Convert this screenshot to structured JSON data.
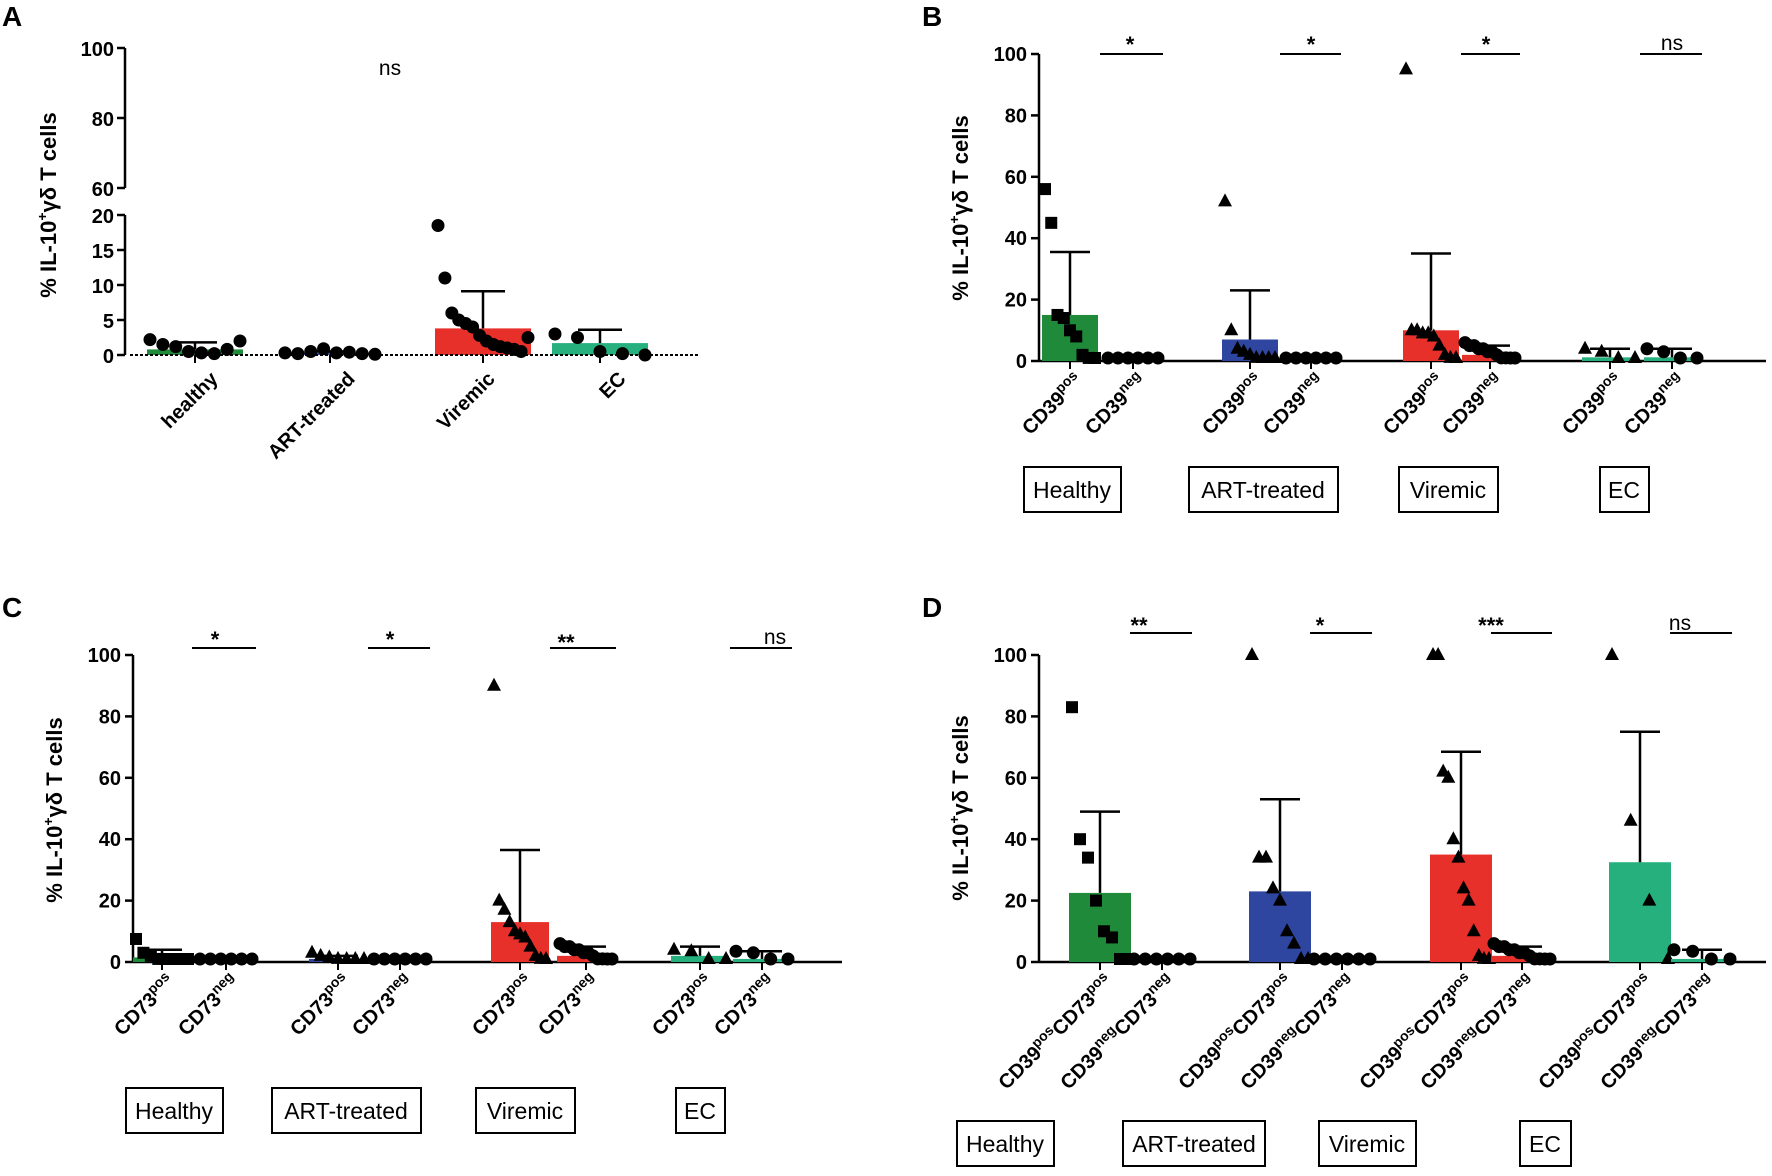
{
  "colors": {
    "Healthy": "#1f8b3a",
    "ART-treated": "#2e46a0",
    "Viremic": "#e8302a",
    "EC": "#25b07e"
  },
  "chart_data": [
    {
      "panel": "A",
      "type": "bar",
      "ylabel": "% IL-10⁺γδ T cells",
      "ylim": [
        0,
        100
      ],
      "y_axis_break": [
        20,
        60
      ],
      "yticks": [
        0,
        5,
        10,
        15,
        20,
        60,
        80,
        100
      ],
      "categories": [
        "healthy",
        "ART-treated",
        "Viremic",
        "EC"
      ],
      "values": [
        0.8,
        0.3,
        3.8,
        1.7
      ],
      "error_upper": [
        1.8,
        0.5,
        9.1,
        3.6
      ],
      "points": [
        [
          2.2,
          1.5,
          1.2,
          0.5,
          0.3,
          0.2,
          0.8,
          2.0
        ],
        [
          0.3,
          0.2,
          0.5,
          0.9,
          0.3,
          0.4,
          0.2,
          0.1
        ],
        [
          18.5,
          11.0,
          6.0,
          5.0,
          4.5,
          4.0,
          2.8,
          2.0,
          1.5,
          1.2,
          1.0,
          0.8,
          0.5,
          2.5
        ],
        [
          3.0,
          2.5,
          0.5,
          0.2,
          0.0
        ]
      ],
      "significance": [
        "ns"
      ]
    },
    {
      "panel": "B",
      "type": "bar",
      "ylabel": "% IL-10⁺γδ T cells",
      "ylim": [
        0,
        100
      ],
      "yticks": [
        0,
        20,
        40,
        60,
        80,
        100
      ],
      "groups": [
        "Healthy",
        "ART-treated",
        "Viremic",
        "EC"
      ],
      "categories": [
        "CD39pos",
        "CD39neg"
      ],
      "series": [
        {
          "values": [
            15,
            0.3
          ],
          "error_upper": [
            35.5,
            0.5
          ],
          "points": [
            [
              56,
              45,
              15,
              14,
              10,
              8,
              2,
              1,
              0.5
            ],
            [
              0.2,
              0.1,
              0.3,
              0.1,
              0.2,
              0.1
            ]
          ]
        },
        {
          "values": [
            7,
            0.3
          ],
          "error_upper": [
            23,
            0.5
          ],
          "points": [
            [
              52,
              10,
              4,
              3,
              2,
              1,
              0.5,
              0.3,
              0.1
            ],
            [
              0.2,
              0.1,
              0.3,
              0.1,
              0.2,
              0.1
            ]
          ]
        },
        {
          "values": [
            10,
            2
          ],
          "error_upper": [
            35,
            5
          ],
          "points": [
            [
              95,
              10,
              10,
              9,
              9,
              8,
              5,
              2,
              1,
              0.5
            ],
            [
              6,
              5,
              5,
              4,
              4,
              3,
              3,
              2,
              1,
              1,
              0.5,
              0.3
            ]
          ]
        },
        {
          "values": [
            1.2,
            1.2
          ],
          "error_upper": [
            4,
            4
          ],
          "points": [
            [
              4,
              3,
              0.5,
              0.2
            ],
            [
              4,
              3,
              0.5,
              0.3
            ]
          ]
        }
      ],
      "significance": [
        "*",
        "*",
        "*",
        "ns"
      ]
    },
    {
      "panel": "C",
      "type": "bar",
      "ylabel": "% IL-10⁺γδ T cells",
      "ylim": [
        0,
        100
      ],
      "yticks": [
        0,
        20,
        40,
        60,
        80,
        100
      ],
      "groups": [
        "Healthy",
        "ART-treated",
        "Viremic",
        "EC"
      ],
      "categories": [
        "CD73pos",
        "CD73neg"
      ],
      "series": [
        {
          "values": [
            1.5,
            0.3
          ],
          "error_upper": [
            4,
            0.5
          ],
          "points": [
            [
              7.5,
              3,
              2,
              1,
              0.5,
              0.3,
              0.2,
              0.1
            ],
            [
              0.2,
              0.1,
              0.3,
              0.1,
              0.2,
              0.1
            ]
          ]
        },
        {
          "values": [
            1,
            0.3
          ],
          "error_upper": [
            2,
            0.5
          ],
          "points": [
            [
              3,
              2,
              1.5,
              1,
              0.5,
              0.3,
              0.2
            ],
            [
              0.2,
              0.1,
              0.3,
              0.5,
              0.2,
              0.1
            ]
          ]
        },
        {
          "values": [
            13,
            2
          ],
          "error_upper": [
            36.5,
            5
          ],
          "points": [
            [
              90,
              20,
              17,
              13,
              10,
              9,
              8,
              5,
              2,
              1,
              0.5
            ],
            [
              6,
              5,
              5,
              4,
              4,
              3,
              3,
              2,
              1,
              1,
              0.5,
              0.3
            ]
          ]
        },
        {
          "values": [
            2,
            1
          ],
          "error_upper": [
            5,
            3.5
          ],
          "points": [
            [
              4,
              3.5,
              0.5,
              0.2
            ],
            [
              3.5,
              3,
              0.5,
              0.2
            ]
          ]
        }
      ],
      "significance": [
        "*",
        "*",
        "**",
        "ns"
      ]
    },
    {
      "panel": "D",
      "type": "bar",
      "ylabel": "% IL-10⁺γδ T cells",
      "ylim": [
        0,
        100
      ],
      "yticks": [
        0,
        20,
        40,
        60,
        80,
        100
      ],
      "groups": [
        "Healthy",
        "ART-treated",
        "Viremic",
        "EC"
      ],
      "categories": [
        "CD39posCD73pos",
        "CD39negCD73neg"
      ],
      "series": [
        {
          "values": [
            22.5,
            0.3
          ],
          "error_upper": [
            49,
            0.5
          ],
          "points": [
            [
              83,
              40,
              34,
              20,
              10,
              8,
              0.5,
              0.2
            ],
            [
              0.2,
              0.1,
              0.3,
              0.1,
              0.2,
              0.1
            ]
          ]
        },
        {
          "values": [
            23,
            0.3
          ],
          "error_upper": [
            53,
            0.5
          ],
          "points": [
            [
              100,
              34,
              34,
              24,
              20,
              10,
              6,
              0.5,
              0.2
            ],
            [
              0.2,
              0.1,
              0.3,
              0.1,
              0.2,
              0.1
            ]
          ]
        },
        {
          "values": [
            35,
            2
          ],
          "error_upper": [
            68.5,
            5
          ],
          "points": [
            [
              100,
              100,
              62,
              60,
              40,
              34,
              24,
              20,
              10,
              2,
              1,
              0.5
            ],
            [
              6,
              5,
              5,
              4,
              4,
              3,
              3,
              2,
              1,
              1,
              0.5,
              0.3
            ]
          ]
        },
        {
          "values": [
            32.5,
            1
          ],
          "error_upper": [
            75,
            4
          ],
          "points": [
            [
              100,
              46,
              20,
              0.5
            ],
            [
              4,
              3.5,
              0.5,
              0.2
            ]
          ]
        }
      ],
      "significance": [
        "**",
        "*",
        "***",
        "ns"
      ]
    }
  ],
  "panels": {
    "a": {
      "label": "A",
      "ylabel": "% IL-10",
      "ylabel_sup": "+",
      "ylabel_rest": "γδ T cells",
      "sig": "ns",
      "cat0": "healthy",
      "cat1": "ART-treated",
      "cat2": "Viremic",
      "cat3": "EC",
      "t0": "0",
      "t5": "5",
      "t10": "10",
      "t15": "15",
      "t20": "20",
      "t60": "60",
      "t80": "80",
      "t100": "100"
    },
    "b": {
      "label": "B",
      "sig0": "*",
      "sig1": "*",
      "sig2": "*",
      "sig3": "ns",
      "lab_pos_base": "CD39",
      "lab_pos_sup": "pos",
      "lab_neg_base": "CD39",
      "lab_neg_sup": "neg",
      "g0": "Healthy",
      "g1": "ART-treated",
      "g2": "Viremic",
      "g3": "EC"
    },
    "c": {
      "label": "C",
      "sig0": "*",
      "sig1": "*",
      "sig2": "**",
      "sig3": "ns",
      "lab_pos_base": "CD73",
      "lab_pos_sup": "pos",
      "lab_neg_base": "CD73",
      "lab_neg_sup": "neg",
      "g0": "Healthy",
      "g1": "ART-treated",
      "g2": "Viremic",
      "g3": "EC"
    },
    "d": {
      "label": "D",
      "sig0": "**",
      "sig1": "*",
      "sig2": "***",
      "sig3": "ns",
      "g0": "Healthy",
      "g1": "ART-treated",
      "g2": "Viremic",
      "g3": "EC",
      "d_a": "CD39",
      "d_b": "pos",
      "d_c": "CD73",
      "d_d": "pos",
      "d_e": "CD39",
      "d_f": "neg",
      "d_g": "CD73",
      "d_h": "neg"
    },
    "yticks": [
      "0",
      "20",
      "40",
      "60",
      "80",
      "100"
    ]
  }
}
